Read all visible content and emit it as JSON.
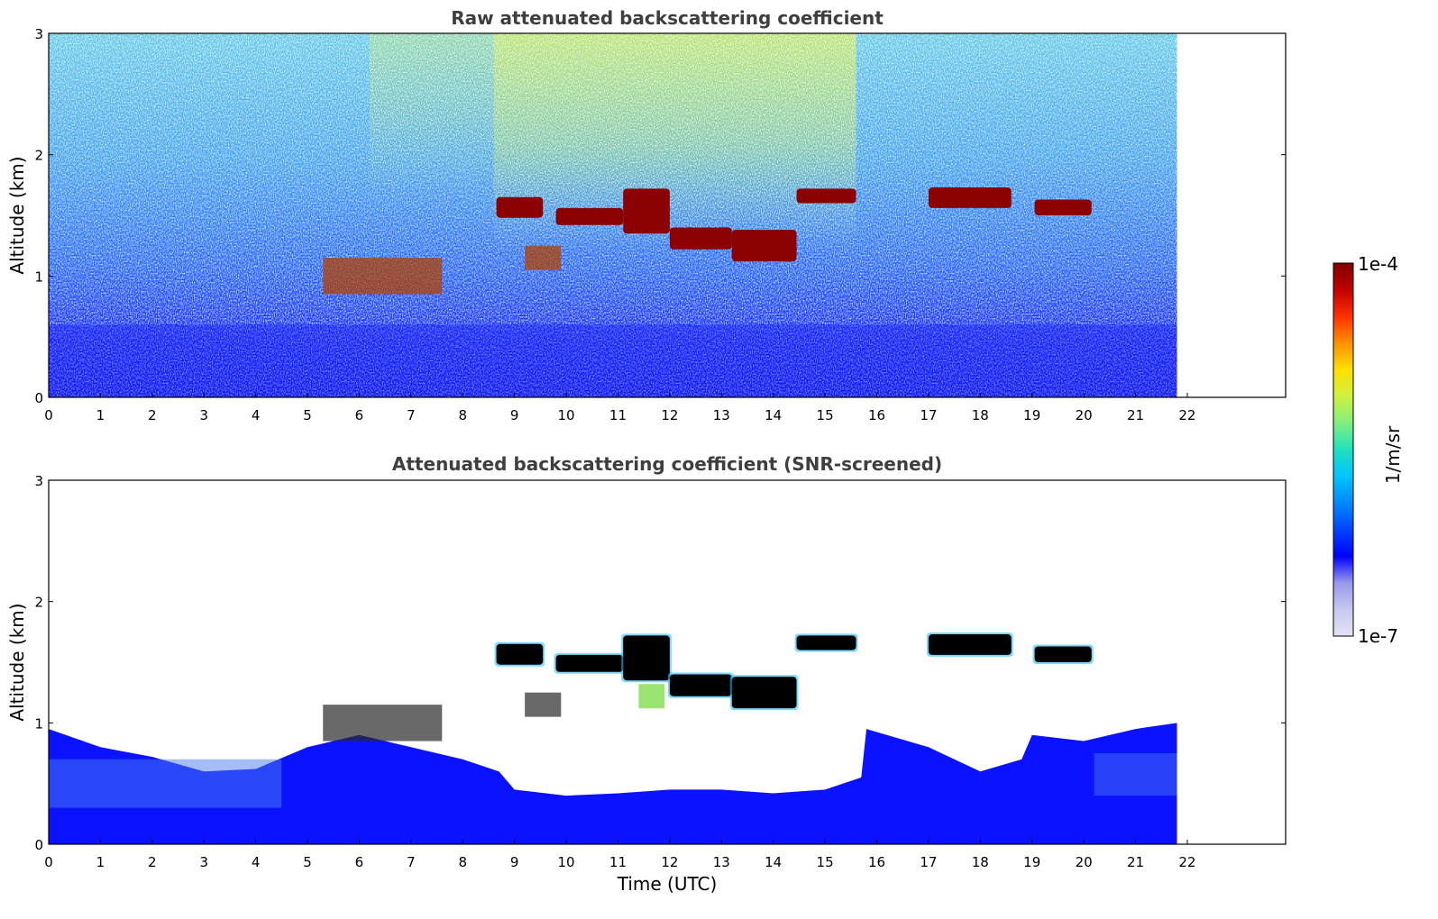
{
  "colors": {
    "colormap": [
      "#e3e3f3",
      "#c8c8f0",
      "#9898ec",
      "#0000ff",
      "#0044ff",
      "#0088ff",
      "#00c4ff",
      "#20e0c0",
      "#80f080",
      "#d0f040",
      "#ffe000",
      "#ff9000",
      "#ff3000",
      "#c00000",
      "#800000"
    ],
    "cloud_core": "#8b0000",
    "cloud_core_screened": "#000000",
    "boundary_layer": "#0a12ff",
    "frame": "#000000",
    "title": "#3f3f3f"
  },
  "chart_data": [
    {
      "type": "heatmap",
      "title": "Raw attenuated backscattering coefficient",
      "xlabel": "",
      "ylabel": "Altitude (km)",
      "xlim": [
        0,
        23.9
      ],
      "ylim": [
        0,
        3
      ],
      "data_end_time": 21.8,
      "x_ticks": [
        "0",
        "1",
        "2",
        "3",
        "4",
        "5",
        "6",
        "7",
        "8",
        "9",
        "10",
        "11",
        "12",
        "13",
        "14",
        "15",
        "16",
        "17",
        "18",
        "19",
        "20",
        "21",
        "22"
      ],
      "y_ticks": [
        "0",
        "1",
        "2",
        "3"
      ],
      "features": {
        "cloud_layers": [
          {
            "t": [
              8.65,
              9.55
            ],
            "base_km": 1.48,
            "top_km": 1.65
          },
          {
            "t": [
              9.8,
              11.1
            ],
            "base_km": 1.42,
            "top_km": 1.56
          },
          {
            "t": [
              11.1,
              12.0
            ],
            "base_km": 1.35,
            "top_km": 1.72
          },
          {
            "t": [
              12.0,
              13.2
            ],
            "base_km": 1.22,
            "top_km": 1.4
          },
          {
            "t": [
              13.2,
              14.45
            ],
            "base_km": 1.12,
            "top_km": 1.38
          },
          {
            "t": [
              14.45,
              15.6
            ],
            "base_km": 1.6,
            "top_km": 1.72
          },
          {
            "t": [
              17.0,
              18.6
            ],
            "base_km": 1.56,
            "top_km": 1.73
          },
          {
            "t": [
              19.05,
              20.15
            ],
            "base_km": 1.5,
            "top_km": 1.63
          }
        ],
        "low_cloud_patches": [
          {
            "t": [
              5.3,
              7.6
            ],
            "base_km": 0.85,
            "top_km": 1.15
          },
          {
            "t": [
              9.2,
              9.9
            ],
            "base_km": 1.05,
            "top_km": 1.25
          }
        ],
        "boundary_layer_top_km": 0.6
      }
    },
    {
      "type": "heatmap",
      "title": "Attenuated backscattering coefficient (SNR-screened)",
      "xlabel": "Time (UTC)",
      "ylabel": "Altitude (km)",
      "xlim": [
        0,
        23.9
      ],
      "ylim": [
        0,
        3
      ],
      "data_end_time": 21.8,
      "x_ticks": [
        "0",
        "1",
        "2",
        "3",
        "4",
        "5",
        "6",
        "7",
        "8",
        "9",
        "10",
        "11",
        "12",
        "13",
        "14",
        "15",
        "16",
        "17",
        "18",
        "19",
        "20",
        "21",
        "22"
      ],
      "y_ticks": [
        "0",
        "1",
        "2",
        "3"
      ],
      "boundary_layer_profile": [
        {
          "t": 0.0,
          "top_km": 0.95
        },
        {
          "t": 1.0,
          "top_km": 0.8
        },
        {
          "t": 2.0,
          "top_km": 0.72
        },
        {
          "t": 3.0,
          "top_km": 0.6
        },
        {
          "t": 4.0,
          "top_km": 0.62
        },
        {
          "t": 5.0,
          "top_km": 0.8
        },
        {
          "t": 6.0,
          "top_km": 0.9
        },
        {
          "t": 7.0,
          "top_km": 0.8
        },
        {
          "t": 8.0,
          "top_km": 0.7
        },
        {
          "t": 8.7,
          "top_km": 0.6
        },
        {
          "t": 9.0,
          "top_km": 0.45
        },
        {
          "t": 10.0,
          "top_km": 0.4
        },
        {
          "t": 11.0,
          "top_km": 0.42
        },
        {
          "t": 12.0,
          "top_km": 0.45
        },
        {
          "t": 13.0,
          "top_km": 0.45
        },
        {
          "t": 14.0,
          "top_km": 0.42
        },
        {
          "t": 15.0,
          "top_km": 0.45
        },
        {
          "t": 15.7,
          "top_km": 0.55
        },
        {
          "t": 15.8,
          "top_km": 0.95
        },
        {
          "t": 17.0,
          "top_km": 0.8
        },
        {
          "t": 18.0,
          "top_km": 0.6
        },
        {
          "t": 18.8,
          "top_km": 0.7
        },
        {
          "t": 19.0,
          "top_km": 0.9
        },
        {
          "t": 20.0,
          "top_km": 0.85
        },
        {
          "t": 21.0,
          "top_km": 0.95
        },
        {
          "t": 21.8,
          "top_km": 1.0
        }
      ]
    }
  ],
  "colorbar": {
    "label": "1/m/sr",
    "max_label": "1e-4",
    "min_label": "1e-7",
    "scale": "log"
  }
}
